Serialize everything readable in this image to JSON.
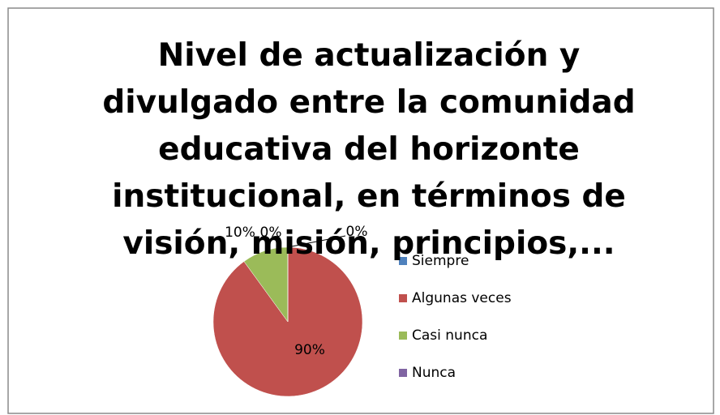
{
  "chart_data": {
    "type": "pie",
    "title": "Nivel de actualización y divulgado entre la comunidad educativa del horizonte institucional, en términos de visión, misión, principios,...",
    "categories": [
      "Siempre",
      "Algunas veces",
      "Casi nunca",
      "Nunca"
    ],
    "values": [
      0,
      90,
      10,
      0
    ],
    "value_labels": [
      "0%",
      "90%",
      "10%",
      "0%"
    ],
    "colors": [
      "#4f81bd",
      "#c0504d",
      "#9bbb59",
      "#8064a2"
    ],
    "legend": "right"
  }
}
